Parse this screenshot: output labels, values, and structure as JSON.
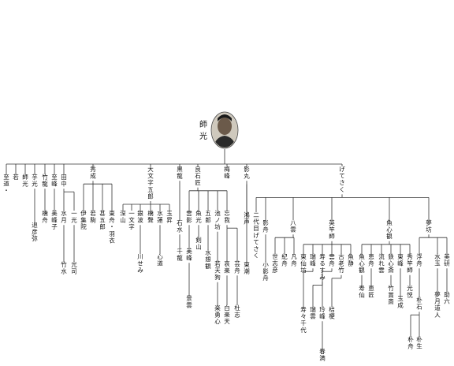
{
  "root": {
    "name_lines": [
      "師",
      "光"
    ],
    "avatar": "portrait-photo"
  },
  "nodes": [
    {
      "id": "n0",
      "label": "至道・",
      "parent": "root"
    },
    {
      "id": "n1",
      "label": "若",
      "parent": "root"
    },
    {
      "id": "n2",
      "label": "師光",
      "parent": "root"
    },
    {
      "id": "n3",
      "label": "芋光",
      "parent": "root"
    },
    {
      "id": "n3a",
      "label": "退彦弥",
      "parent": "n3"
    },
    {
      "id": "n4",
      "label": "竹龍",
      "parent": "root"
    },
    {
      "id": "n4a",
      "label": "橋舟",
      "parent": "n4"
    },
    {
      "id": "n5",
      "label": "至峰",
      "parent": "root"
    },
    {
      "id": "n5a",
      "label": "美峰子",
      "parent": "n5"
    },
    {
      "id": "n6",
      "label": "田中",
      "parent": "root"
    },
    {
      "id": "n6a",
      "label": "水月",
      "parent": "n6"
    },
    {
      "id": "n6a1",
      "label": "竹水",
      "parent": "n6a"
    },
    {
      "id": "n6b",
      "label": "一光",
      "parent": "n6"
    },
    {
      "id": "n6b1",
      "label": "光司",
      "parent": "n6b"
    },
    {
      "id": "n7",
      "label": "秀成",
      "parent": "root"
    },
    {
      "id": "n7a",
      "label": "伊集院",
      "parent": "n7"
    },
    {
      "id": "n7b",
      "label": "若駒",
      "parent": "n7"
    },
    {
      "id": "n7c",
      "label": "甚五郎",
      "parent": "n7"
    },
    {
      "id": "n7d",
      "label": "東舟・羽衣",
      "parent": "n7"
    },
    {
      "id": "n8",
      "label": "大文字五郎",
      "parent": "root"
    },
    {
      "id": "n8a",
      "label": "深山",
      "parent": "n8"
    },
    {
      "id": "n8b",
      "label": "一文字",
      "parent": "n8"
    },
    {
      "id": "n8c",
      "label": "銀波",
      "parent": "n8"
    },
    {
      "id": "n8c1",
      "label": "川せみ",
      "parent": "n8c"
    },
    {
      "id": "n8d",
      "label": "橋聲",
      "parent": "n8"
    },
    {
      "id": "n8e",
      "label": "水蓮",
      "parent": "n8"
    },
    {
      "id": "n8e1",
      "label": "心道",
      "parent": "n8e"
    },
    {
      "id": "n8f",
      "label": "玉昇",
      "parent": "n8"
    },
    {
      "id": "n9",
      "label": "黒龍",
      "parent": "root"
    },
    {
      "id": "n9a",
      "label": "石水",
      "parent": "n9"
    },
    {
      "id": "n9a1",
      "label": "千龍",
      "parent": "n9a"
    },
    {
      "id": "n10",
      "label": "良石匠",
      "parent": "root"
    },
    {
      "id": "n10a",
      "label": "雲影",
      "parent": "n10"
    },
    {
      "id": "n10a1",
      "label": "美峰",
      "parent": "n10a"
    },
    {
      "id": "n10a2",
      "label": "景雲",
      "parent": "n10a1"
    },
    {
      "id": "n10b",
      "label": "魚光",
      "parent": "n10"
    },
    {
      "id": "n10b1",
      "label": "剣山",
      "parent": "n10b"
    },
    {
      "id": "n10c",
      "label": "五郎",
      "parent": "n10"
    },
    {
      "id": "n10c1",
      "label": "水想観",
      "parent": "n10c"
    },
    {
      "id": "n10d",
      "label": "池ノ坊",
      "parent": "n10"
    },
    {
      "id": "n10d1",
      "label": "若天狗",
      "parent": "n10d"
    },
    {
      "id": "n10d2",
      "label": "楽勇心",
      "parent": "n10d1"
    },
    {
      "id": "n10e",
      "label": "忘我",
      "parent": "n10"
    },
    {
      "id": "n10e1",
      "label": "哀楽",
      "parent": "n10e"
    },
    {
      "id": "n10e2",
      "label": "白楽天",
      "parent": "n10e1"
    },
    {
      "id": "n10e3",
      "label": "芸舟",
      "parent": "n10e"
    },
    {
      "id": "n10e4",
      "label": "杜志",
      "parent": "n10e3"
    },
    {
      "id": "n11",
      "label": "梅峰",
      "parent": "root"
    },
    {
      "id": "n12",
      "label": "影丸",
      "parent": "root"
    },
    {
      "id": "n12a",
      "label": "鴻声",
      "parent": "n12"
    },
    {
      "id": "n12b",
      "label": "東潮",
      "parent": "n12"
    },
    {
      "id": "n13",
      "label": "げてさく",
      "parent": "root"
    },
    {
      "id": "n13a",
      "label": "二代目げてさく",
      "parent": "n13"
    },
    {
      "id": "n13b",
      "label": "影舟",
      "parent": "n13"
    },
    {
      "id": "n13b1",
      "label": "小影舟",
      "parent": "n13b"
    },
    {
      "id": "n13c",
      "label": "八雲",
      "parent": "n13"
    },
    {
      "id": "n13c1",
      "label": "世志彦",
      "parent": "n13c"
    },
    {
      "id": "n13c2",
      "label": "紀舟",
      "parent": "n13c"
    },
    {
      "id": "n13c3",
      "label": "凡舟",
      "parent": "n13c"
    },
    {
      "id": "n13d",
      "label": "英竿師",
      "parent": "n13"
    },
    {
      "id": "n13d1",
      "label": "東仙坊",
      "parent": "n13d"
    },
    {
      "id": "n13d2",
      "label": "瑞峰",
      "parent": "n13d"
    },
    {
      "id": "n13d2a",
      "label": "寿々千代",
      "parent": "n13d2"
    },
    {
      "id": "n13d3",
      "label": "寿るすみ",
      "parent": "n13d"
    },
    {
      "id": "n13d3a",
      "label": "瑞雲",
      "parent": "n13d3"
    },
    {
      "id": "n13d4",
      "label": "雲舟",
      "parent": "n13d"
    },
    {
      "id": "n13d4a",
      "label": "玲峰",
      "parent": "n13d4"
    },
    {
      "id": "n13d4b",
      "label": "春満",
      "parent": "n13d4a"
    },
    {
      "id": "n13d5",
      "label": "古老竹",
      "parent": "n13d"
    },
    {
      "id": "n13d5a",
      "label": "桔梗",
      "parent": "n13d5"
    },
    {
      "id": "n13d6",
      "label": "魚静",
      "parent": "n13d"
    },
    {
      "id": "n13e",
      "label": "魚心観",
      "parent": "n13"
    },
    {
      "id": "n13e1",
      "label": "魚心観",
      "parent": "n13e"
    },
    {
      "id": "n13e1a",
      "label": "寿仙",
      "parent": "n13e1"
    },
    {
      "id": "n13e2",
      "label": "恵舟",
      "parent": "n13e"
    },
    {
      "id": "n13e2a",
      "label": "恵匠",
      "parent": "n13e2"
    },
    {
      "id": "n13e3",
      "label": "流れ雲",
      "parent": "n13e"
    },
    {
      "id": "n13e4",
      "label": "鉄心斎",
      "parent": "n13e"
    },
    {
      "id": "n13e4a",
      "label": "竹賞斎",
      "parent": "n13e4"
    },
    {
      "id": "n13e5",
      "label": "東峰",
      "parent": "n13e"
    },
    {
      "id": "n13e5a",
      "label": "玉成",
      "parent": "n13e5"
    },
    {
      "id": "n13e6",
      "label": "秀竿師",
      "parent": "n13e"
    },
    {
      "id": "n13e6a",
      "label": "光悦",
      "parent": "n13e6"
    },
    {
      "id": "n13f",
      "label": "夢坊",
      "parent": "n13"
    },
    {
      "id": "n13f1",
      "label": "浮舟",
      "parent": "n13f"
    },
    {
      "id": "n13f1a",
      "label": "朴石",
      "parent": "n13f1"
    },
    {
      "id": "n13f1b",
      "label": "朴舟",
      "parent": "n13f1a"
    },
    {
      "id": "n13f1c",
      "label": "朴生",
      "parent": "n13f1a"
    },
    {
      "id": "n13f2",
      "label": "水玉",
      "parent": "n13f"
    },
    {
      "id": "n13f2a",
      "label": "夢月道人",
      "parent": "n13f2"
    },
    {
      "id": "n13f3",
      "label": "美研",
      "parent": "n13f"
    },
    {
      "id": "n13f3a",
      "label": "助六",
      "parent": "n13f3"
    }
  ]
}
